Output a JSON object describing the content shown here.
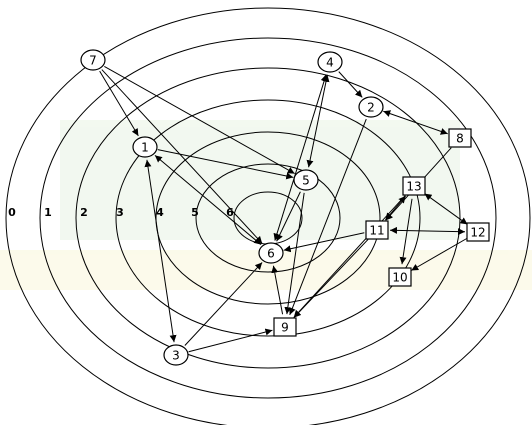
{
  "ring_labels": [
    "0",
    "1",
    "2",
    "3",
    "4",
    "5",
    "6"
  ],
  "nodes": [
    {
      "label": "1"
    },
    {
      "label": "2"
    },
    {
      "label": "3"
    },
    {
      "label": "4"
    },
    {
      "label": "5"
    },
    {
      "label": "6"
    },
    {
      "label": "7"
    },
    {
      "label": "8"
    },
    {
      "label": "9"
    },
    {
      "label": "10"
    },
    {
      "label": "11"
    },
    {
      "label": "12"
    },
    {
      "label": "13"
    }
  ]
}
